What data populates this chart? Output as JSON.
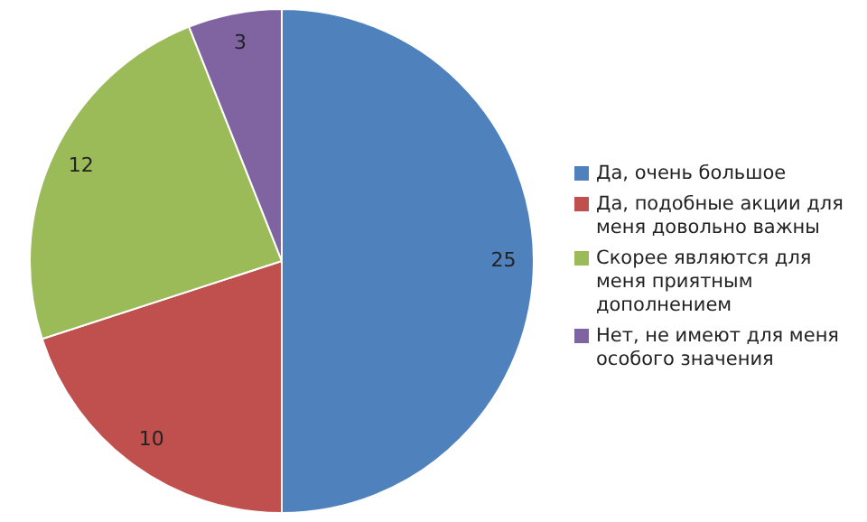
{
  "chart_data": {
    "type": "pie",
    "categories": [
      "Да, очень большое",
      "Да, подобные акции для меня довольно важны",
      "Скорее являются для меня приятным дополнением",
      "Нет, не имеют для меня особого значения"
    ],
    "values": [
      25,
      10,
      12,
      3
    ],
    "colors": [
      "#4f81bd",
      "#c0504d",
      "#9bbb59",
      "#8064a2"
    ],
    "data_labels": true,
    "legend": "right"
  }
}
